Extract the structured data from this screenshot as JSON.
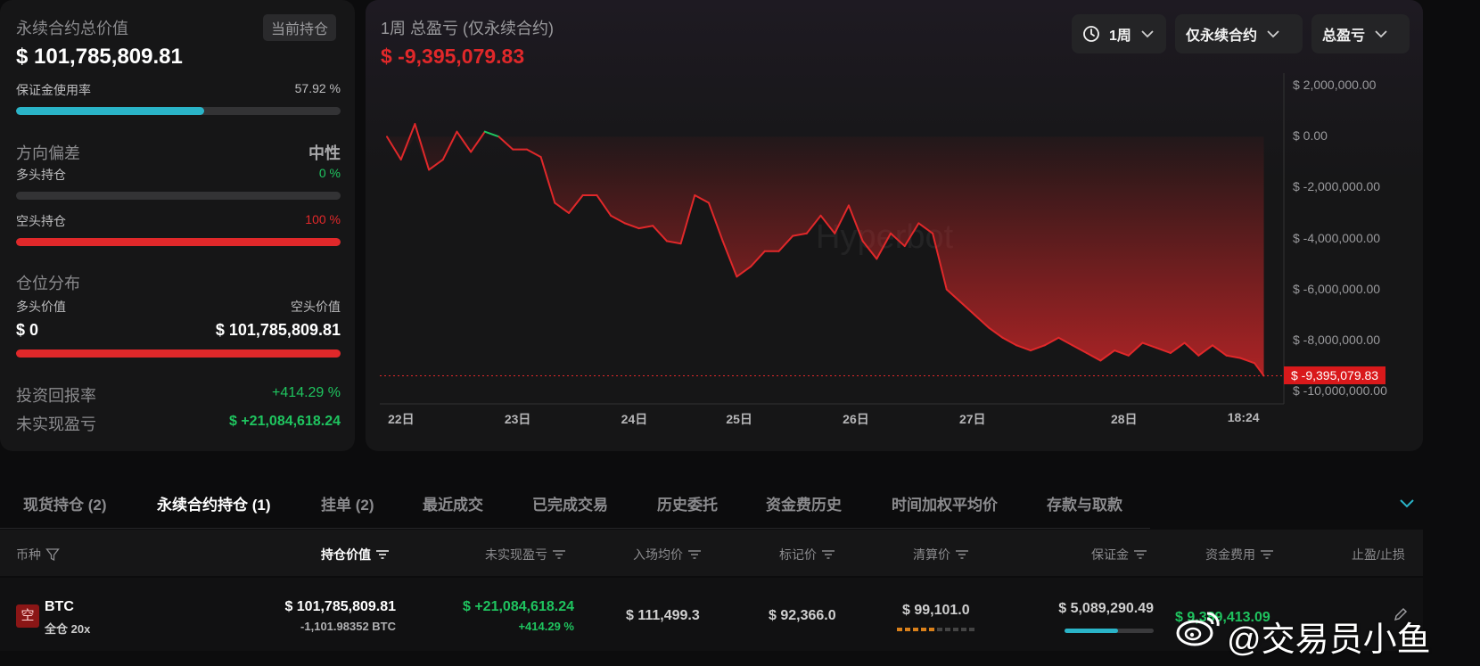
{
  "summary": {
    "title": "永续合约总价值",
    "tag": "当前持仓",
    "total_value": "$ 101,785,809.81",
    "margin_label": "保证金使用率",
    "margin_pct": "57.92 %",
    "margin_fraction": 0.5792,
    "bias_label": "方向偏差",
    "bias_value": "中性",
    "long_label": "多头持仓",
    "long_pct": "0 %",
    "long_fraction": 0,
    "short_label": "空头持仓",
    "short_pct": "100 %",
    "short_fraction": 1,
    "dist_label": "仓位分布",
    "long_value_label": "多头价值",
    "short_value_label": "空头价值",
    "long_value": "$ 0",
    "short_value": "$ 101,785,809.81",
    "roi_label": "投资回报率",
    "roi_value": "+414.29 %",
    "upnl_label": "未实现盈亏",
    "upnl_value": "$ +21,084,618.24"
  },
  "chart_panel": {
    "title": "1周 总盈亏 (仅永续合约)",
    "value": "$ -9,395,079.83",
    "dropdowns": [
      "1周",
      "仅永续合约",
      "总盈亏"
    ],
    "watermark": "Hyperbot",
    "current_label": "$ -9,395,079.83"
  },
  "chart_data": {
    "type": "area",
    "title": "1周 总盈亏 (仅永续合约)",
    "y_ticks": [
      "$ 2,000,000.00",
      "$ 0.00",
      "$ -2,000,000.00",
      "$ -4,000,000.00",
      "$ -6,000,000.00",
      "$ -8,000,000.00",
      "$ -10,000,000.00"
    ],
    "y_tick_values": [
      2000000,
      0,
      -2000000,
      -4000000,
      -6000000,
      -8000000,
      -10000000
    ],
    "x_ticks": [
      "22日",
      "23日",
      "24日",
      "25日",
      "26日",
      "27日",
      "28日",
      "18:24"
    ],
    "x_tick_values": [
      0.1,
      1.1,
      2.1,
      3.0,
      4.0,
      5.0,
      6.3,
      7.3
    ],
    "ylim": [
      -10500000,
      2500000
    ],
    "xlim": [
      0,
      7.6
    ],
    "colors": {
      "positive": "#1fc45f",
      "negative": "#e0282a"
    },
    "series": [
      {
        "x": [
          0,
          0.12,
          0.24,
          0.36,
          0.48,
          0.6,
          0.72,
          0.84,
          0.96,
          1.08,
          1.2,
          1.32,
          1.44,
          1.56,
          1.68,
          1.8,
          1.92,
          2.04,
          2.16,
          2.28,
          2.4,
          2.52,
          2.64,
          2.76,
          2.88,
          3.0,
          3.12,
          3.24,
          3.36,
          3.48,
          3.6,
          3.72,
          3.84,
          3.96,
          4.08,
          4.2,
          4.32,
          4.44,
          4.56,
          4.68,
          4.8,
          4.92,
          5.04,
          5.16,
          5.28,
          5.4,
          5.52,
          5.64,
          5.76,
          5.88,
          6.0,
          6.12,
          6.24,
          6.36,
          6.48,
          6.6,
          6.72,
          6.84,
          6.96,
          7.08,
          7.2,
          7.32,
          7.44,
          7.52
        ],
        "values": [
          0,
          -900000,
          500000,
          -1300000,
          -900000,
          200000,
          -600000,
          200000,
          0,
          -500000,
          -500000,
          -800000,
          -2600000,
          -3000000,
          -2300000,
          -2300000,
          -3100000,
          -3400000,
          -3600000,
          -3500000,
          -4100000,
          -4200000,
          -2300000,
          -2600000,
          -4100000,
          -5500000,
          -5100000,
          -4500000,
          -4500000,
          -3900000,
          -3800000,
          -3100000,
          -3800000,
          -2700000,
          -4100000,
          -4800000,
          -3800000,
          -4300000,
          -3400000,
          -3800000,
          -6000000,
          -6500000,
          -7000000,
          -7500000,
          -7900000,
          -8200000,
          -8400000,
          -8200000,
          -7900000,
          -8200000,
          -8500000,
          -8800000,
          -8400000,
          -8600000,
          -8100000,
          -8300000,
          -8500000,
          -8100000,
          -8600000,
          -8200000,
          -8600000,
          -8700000,
          -8900000,
          -9395079.83
        ]
      }
    ]
  },
  "tabs": [
    "现货持仓 (2)",
    "永续合约持仓 (1)",
    "挂单 (2)",
    "最近成交",
    "已完成交易",
    "历史委托",
    "资金费历史",
    "时间加权平均价",
    "存款与取款"
  ],
  "table": {
    "headers": [
      "币种",
      "持仓价值",
      "未实现盈亏",
      "入场均价",
      "标记价",
      "清算价",
      "保证金",
      "资金费用",
      "止盈/止损"
    ],
    "row": {
      "side_badge": "空",
      "coin": "BTC",
      "mode": "全仓 20x",
      "position_value": "$ 101,785,809.81",
      "position_size": "-1,101.98352 BTC",
      "upnl": "$ +21,084,618.24",
      "upnl_pct": "+414.29 %",
      "entry_price": "$ 111,499.3",
      "mark_price": "$ 92,366.0",
      "liq_price": "$ 99,101.0",
      "margin": "$ 5,089,290.49",
      "margin_fraction": 0.6,
      "funding": "$ 9,389,413.09"
    }
  },
  "watermark_overlay": "@交易员小鱼"
}
